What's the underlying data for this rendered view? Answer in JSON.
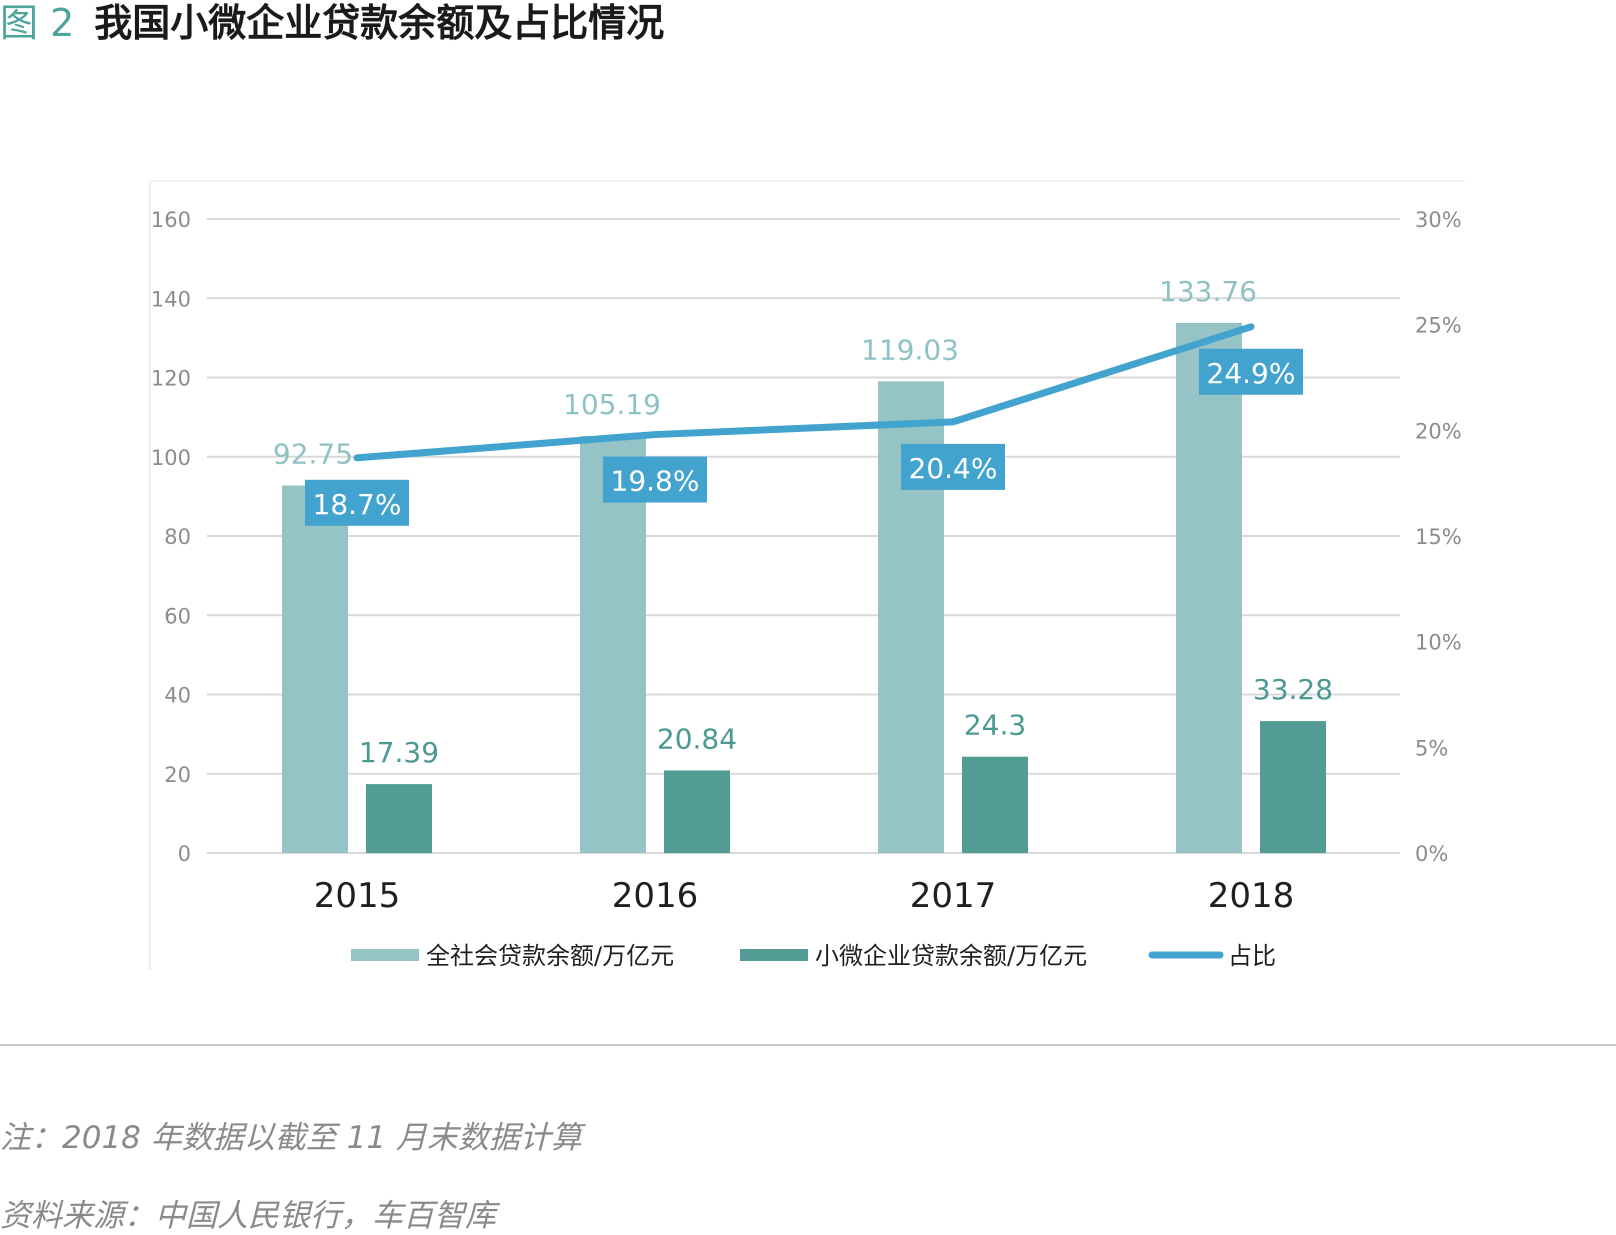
{
  "figure": {
    "number": "图 2",
    "title": "我国小微企业贷款余额及占比情况"
  },
  "chart_data": {
    "type": "bar",
    "categories": [
      "2015",
      "2016",
      "2017",
      "2018"
    ],
    "series": [
      {
        "name": "全社会贷款余额/万亿元",
        "kind": "bar",
        "axis": "left",
        "color": "#95c3c6",
        "values": [
          92.75,
          105.19,
          119.03,
          133.76
        ],
        "labels": [
          "92.75",
          "105.19",
          "119.03",
          "133.76"
        ]
      },
      {
        "name": "小微企业贷款余额/万亿元",
        "kind": "bar",
        "axis": "left",
        "color": "#539b95",
        "values": [
          17.39,
          20.84,
          24.3,
          33.28
        ],
        "labels": [
          "17.39",
          "20.84",
          "24.3",
          "33.28"
        ]
      },
      {
        "name": "占比",
        "kind": "line",
        "axis": "right",
        "color": "#43a3cf",
        "values": [
          18.7,
          19.8,
          20.4,
          24.9
        ],
        "labels": [
          "18.7%",
          "19.8%",
          "20.4%",
          "24.9%"
        ]
      }
    ],
    "left_axis": {
      "ylim": [
        0,
        160
      ],
      "ticks": [
        "0",
        "20",
        "40",
        "60",
        "80",
        "100",
        "120",
        "140",
        "160"
      ]
    },
    "right_axis": {
      "ylim": [
        0,
        30
      ],
      "ticks": [
        "0%",
        "5%",
        "10%",
        "15%",
        "20%",
        "25%",
        "30%"
      ]
    },
    "grid": true,
    "legend": "bottom"
  },
  "notes": {
    "note": "注：2018 年数据以截至 11 月末数据计算",
    "source": "资料来源：中国人民银行，车百智库"
  }
}
